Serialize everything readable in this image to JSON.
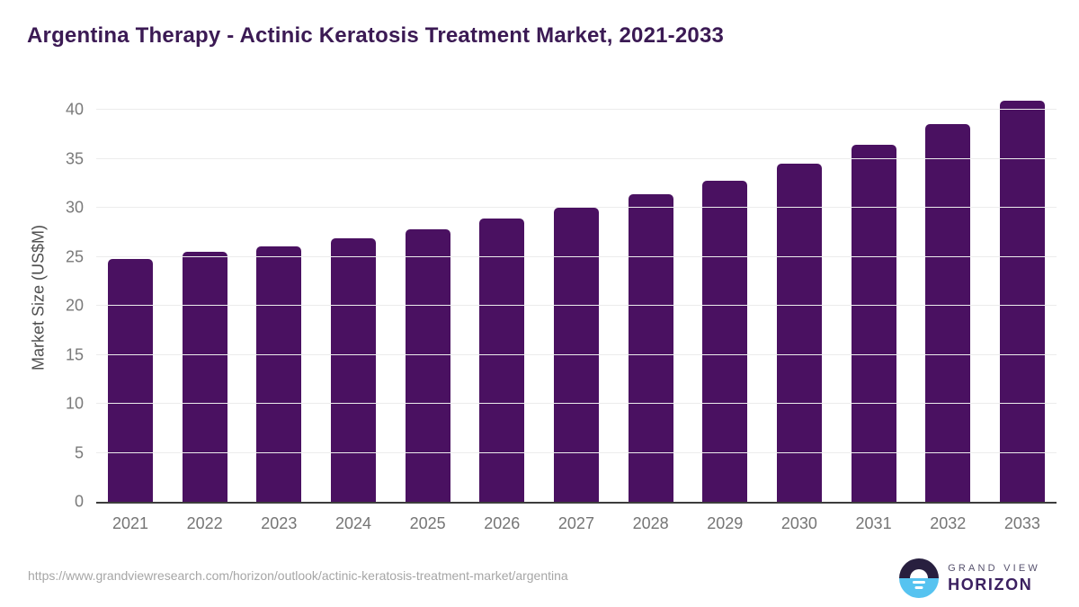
{
  "title": "Argentina Therapy - Actinic Keratosis Treatment Market, 2021-2033",
  "chart_data": {
    "type": "bar",
    "title": "Argentina Therapy - Actinic Keratosis Treatment Market, 2021-2033",
    "categories": [
      "2021",
      "2022",
      "2023",
      "2024",
      "2025",
      "2026",
      "2027",
      "2028",
      "2029",
      "2030",
      "2031",
      "2032",
      "2033"
    ],
    "values": [
      24.8,
      25.5,
      26.1,
      26.9,
      27.8,
      28.9,
      30.0,
      31.4,
      32.8,
      34.5,
      36.5,
      38.6,
      41.0
    ],
    "xlabel": "",
    "ylabel": "Market Size (US$M)",
    "yticks": [
      0,
      5,
      10,
      15,
      20,
      25,
      30,
      35,
      40
    ],
    "ylim": [
      0,
      41.6
    ],
    "grid": "horizontal",
    "legend": "none",
    "bar_color": "#4a1161"
  },
  "footer": {
    "url": "https://www.grandviewresearch.com/horizon/outlook/actinic-keratosis-treatment-market/argentina",
    "logo": {
      "line1": "GRAND VIEW",
      "line2": "HORIZON"
    }
  },
  "colors": {
    "bar": "#4a1161",
    "title_text": "#3b1a54",
    "tick_text": "#7a7a7a",
    "axis_line": "#3d3d3d",
    "gridline": "#ececec",
    "url_text": "#a6a6a6",
    "logo_navy": "#281f3f",
    "logo_blue": "#56c3f0"
  }
}
